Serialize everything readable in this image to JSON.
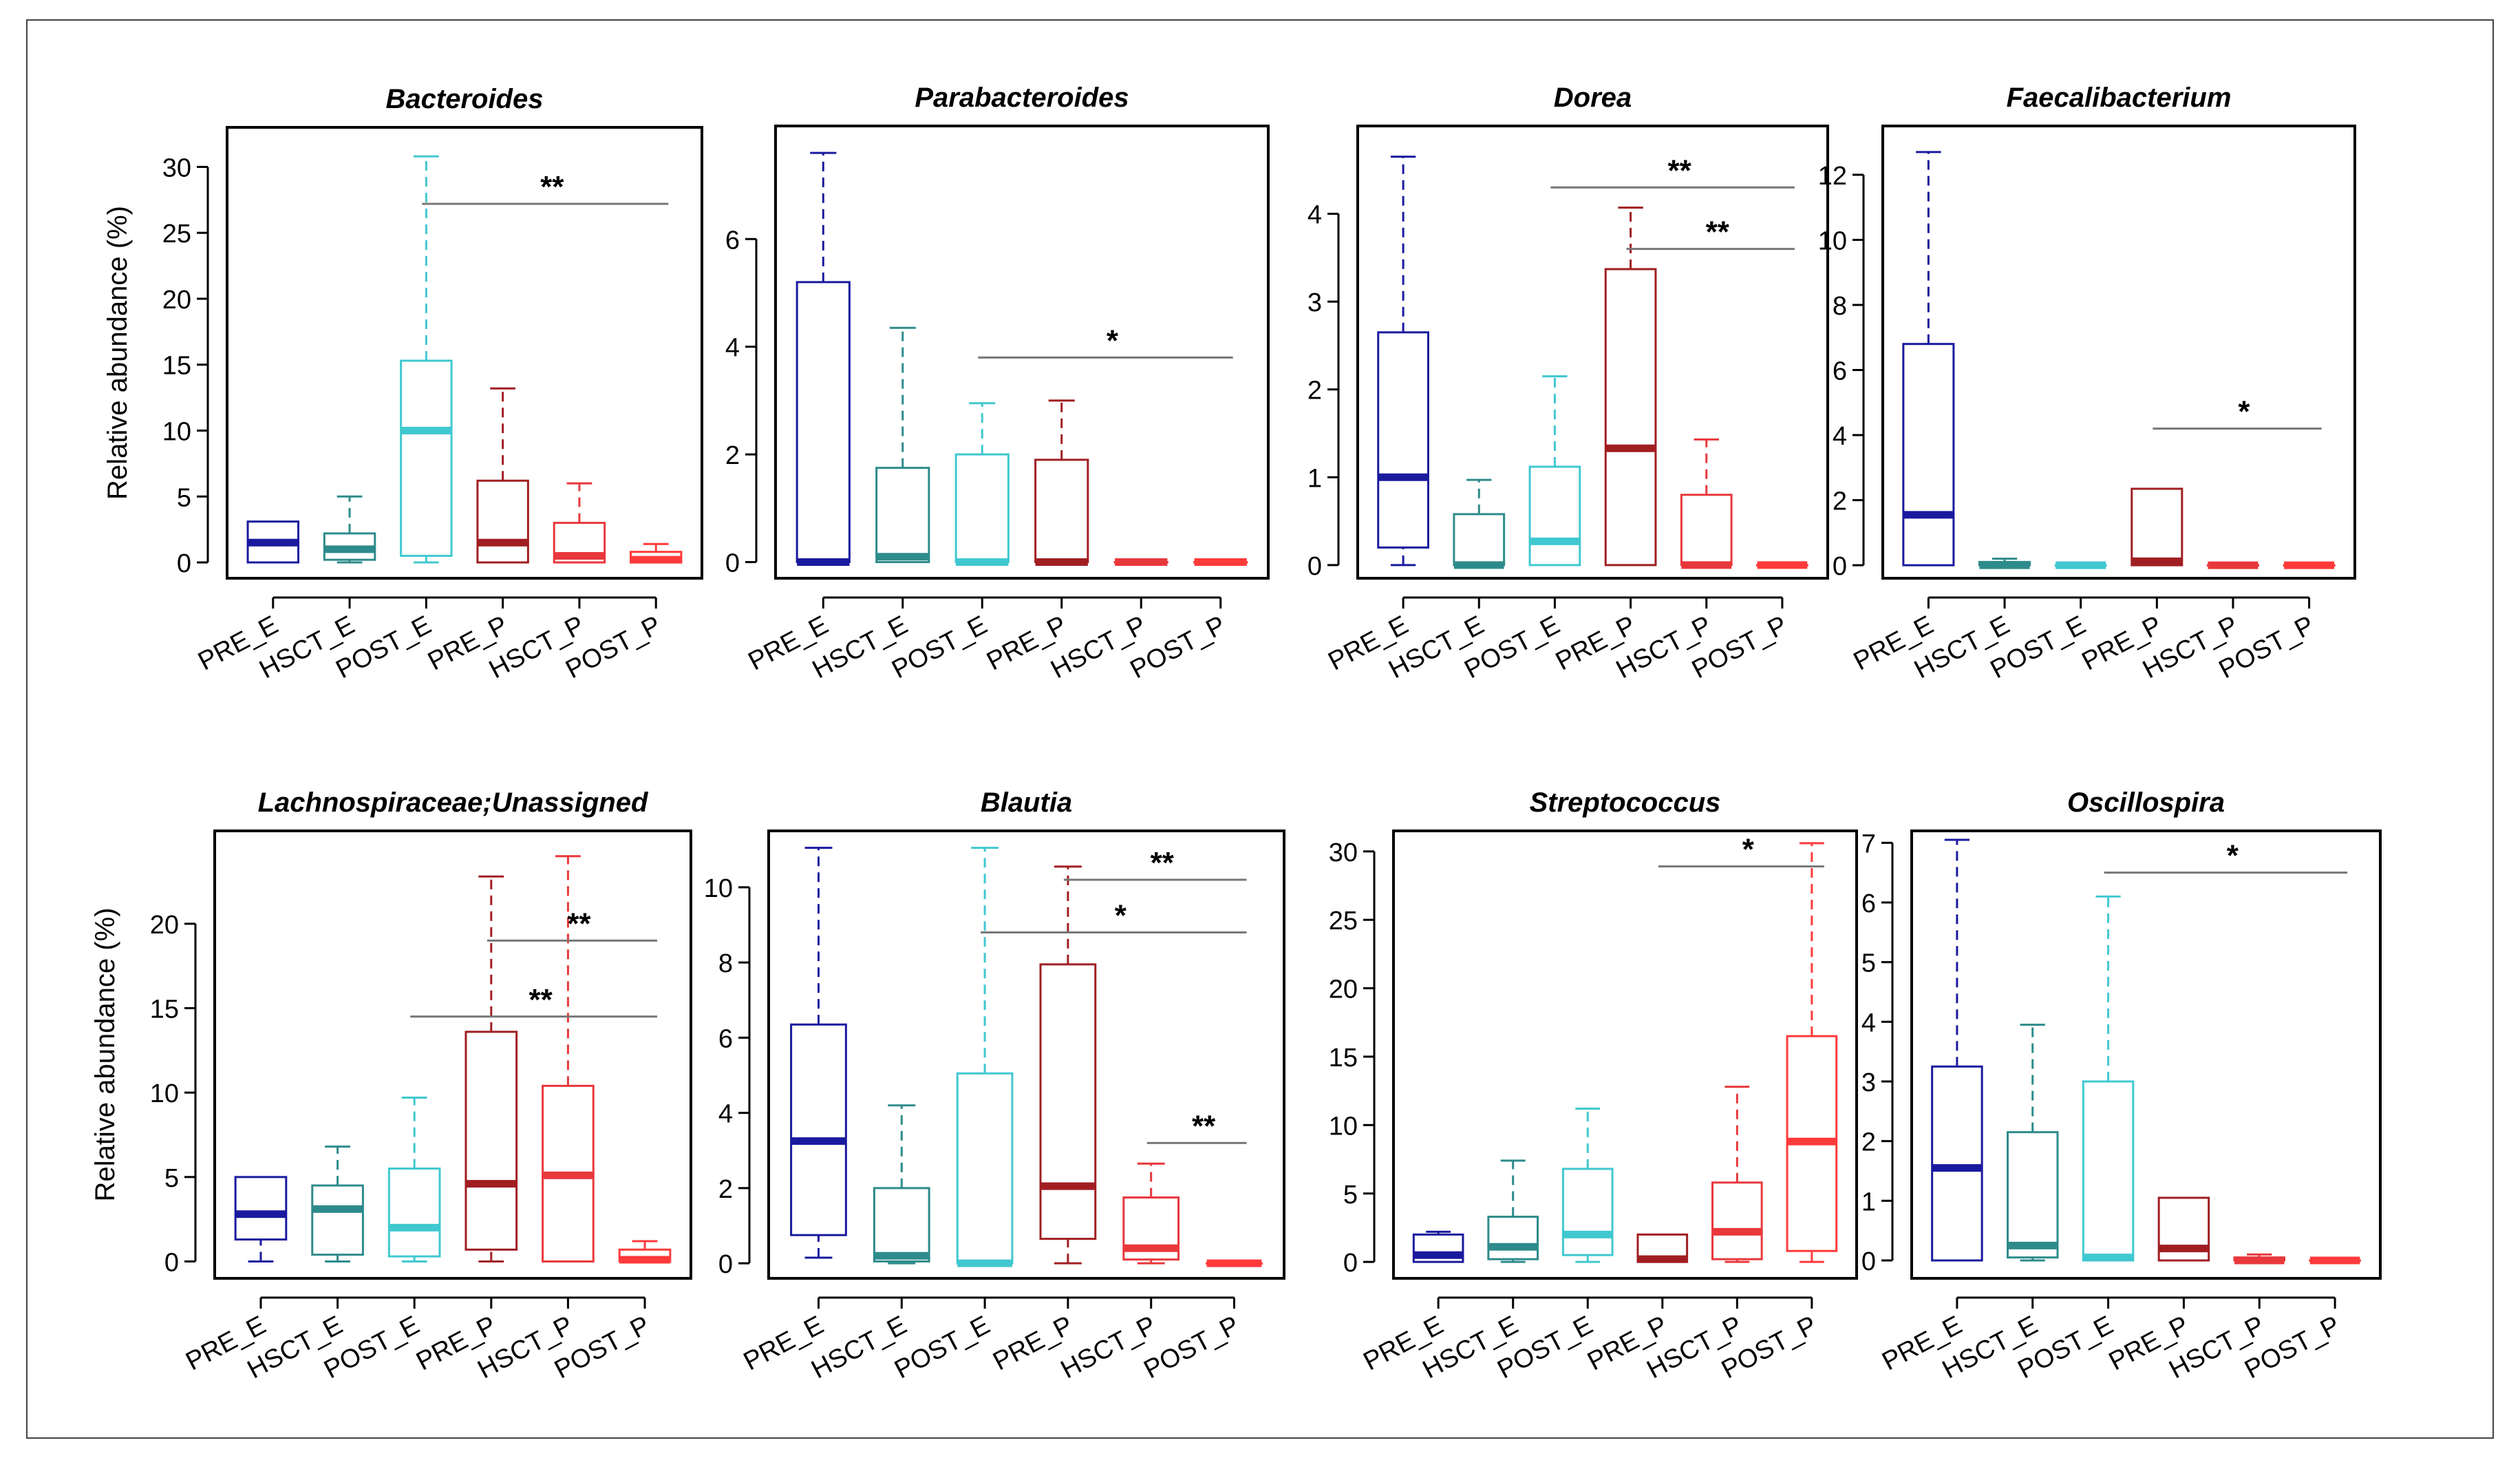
{
  "figure": {
    "ylabel": "Relative abundance (%)",
    "group_colors": {
      "PRE_E": "#1a1a9e",
      "HSCT_E": "#2e8b8b",
      "POST_E": "#40c8d0",
      "PRE_P": "#a01e22",
      "HSCT_P": "#e8383c",
      "POST_P": "#ff3a3a"
    }
  },
  "chart_data": [
    {
      "type": "box",
      "title": "Bacteroides",
      "ylabel": "Relative abundance (%)",
      "categories": [
        "PRE_E",
        "HSCT_E",
        "POST_E",
        "PRE_P",
        "HSCT_P",
        "POST_P"
      ],
      "ylim": [
        -1.2,
        33
      ],
      "yticks": [
        "0",
        "5",
        "10",
        "15",
        "20",
        "25",
        "30"
      ],
      "boxes": [
        {
          "group": "PRE_E",
          "min": 0,
          "q1": 0,
          "median": 1.5,
          "q3": 3.1,
          "max": 3.1
        },
        {
          "group": "HSCT_E",
          "min": 0,
          "q1": 0.2,
          "median": 1.0,
          "q3": 2.2,
          "max": 5.0
        },
        {
          "group": "POST_E",
          "min": 0,
          "q1": 0.5,
          "median": 10.0,
          "q3": 15.3,
          "max": 30.8
        },
        {
          "group": "PRE_P",
          "min": 0,
          "q1": 0,
          "median": 1.5,
          "q3": 6.2,
          "max": 13.2
        },
        {
          "group": "HSCT_P",
          "min": 0,
          "q1": 0,
          "median": 0.5,
          "q3": 3.0,
          "max": 6.0
        },
        {
          "group": "POST_P",
          "min": 0,
          "q1": 0,
          "median": 0.2,
          "q3": 0.8,
          "max": 1.4
        }
      ],
      "significance": [
        {
          "from": "POST_E",
          "to": "POST_P",
          "y": 27.2,
          "label": "**"
        }
      ]
    },
    {
      "type": "box",
      "title": "Parabacteroides",
      "ylabel": "",
      "categories": [
        "PRE_E",
        "HSCT_E",
        "POST_E",
        "PRE_P",
        "HSCT_P",
        "POST_P"
      ],
      "ylim": [
        -0.3,
        8.1
      ],
      "yticks": [
        "0",
        "2",
        "4",
        "6"
      ],
      "boxes": [
        {
          "group": "PRE_E",
          "min": 0,
          "q1": 0,
          "median": 0,
          "q3": 5.2,
          "max": 7.6
        },
        {
          "group": "HSCT_E",
          "min": 0,
          "q1": 0,
          "median": 0.1,
          "q3": 1.75,
          "max": 4.35
        },
        {
          "group": "POST_E",
          "min": 0,
          "q1": 0,
          "median": 0,
          "q3": 2.0,
          "max": 2.95
        },
        {
          "group": "PRE_P",
          "min": 0,
          "q1": 0,
          "median": 0,
          "q3": 1.9,
          "max": 3.0
        },
        {
          "group": "HSCT_P",
          "min": 0,
          "q1": 0,
          "median": 0,
          "q3": 0,
          "max": 0
        },
        {
          "group": "POST_P",
          "min": 0,
          "q1": 0,
          "median": 0,
          "q3": 0,
          "max": 0
        }
      ],
      "significance": [
        {
          "from": "POST_E",
          "to": "POST_P",
          "y": 3.8,
          "label": "*"
        }
      ]
    },
    {
      "type": "box",
      "title": "Dorea",
      "ylabel": "",
      "categories": [
        "PRE_E",
        "HSCT_E",
        "POST_E",
        "PRE_P",
        "HSCT_P",
        "POST_P"
      ],
      "ylim": [
        -0.15,
        5.0
      ],
      "yticks": [
        "0",
        "1",
        "2",
        "3",
        "4"
      ],
      "boxes": [
        {
          "group": "PRE_E",
          "min": 0,
          "q1": 0.2,
          "median": 1.0,
          "q3": 2.65,
          "max": 4.65
        },
        {
          "group": "HSCT_E",
          "min": 0,
          "q1": 0,
          "median": 0,
          "q3": 0.58,
          "max": 0.97
        },
        {
          "group": "POST_E",
          "min": 0,
          "q1": 0,
          "median": 0.27,
          "q3": 1.12,
          "max": 2.15
        },
        {
          "group": "PRE_P",
          "min": 0,
          "q1": 0,
          "median": 1.33,
          "q3": 3.37,
          "max": 4.07
        },
        {
          "group": "HSCT_P",
          "min": 0,
          "q1": 0,
          "median": 0,
          "q3": 0.8,
          "max": 1.43
        },
        {
          "group": "POST_P",
          "min": 0,
          "q1": 0,
          "median": 0,
          "q3": 0,
          "max": 0
        }
      ],
      "significance": [
        {
          "from": "POST_E",
          "to": "POST_P",
          "y": 4.3,
          "label": "**"
        },
        {
          "from": "PRE_P",
          "to": "POST_P",
          "y": 3.6,
          "label": "**"
        }
      ]
    },
    {
      "type": "box",
      "title": "Faecalibacterium",
      "ylabel": "",
      "categories": [
        "PRE_E",
        "HSCT_E",
        "POST_E",
        "PRE_P",
        "HSCT_P",
        "POST_P"
      ],
      "ylim": [
        -0.4,
        13.5
      ],
      "yticks": [
        "0",
        "2",
        "4",
        "6",
        "8",
        "10",
        "12"
      ],
      "boxes": [
        {
          "group": "PRE_E",
          "min": 0,
          "q1": 0,
          "median": 1.55,
          "q3": 6.8,
          "max": 12.7
        },
        {
          "group": "HSCT_E",
          "min": 0,
          "q1": 0,
          "median": 0,
          "q3": 0.1,
          "max": 0.2
        },
        {
          "group": "POST_E",
          "min": 0,
          "q1": 0,
          "median": 0,
          "q3": 0,
          "max": 0
        },
        {
          "group": "PRE_P",
          "min": 0,
          "q1": 0,
          "median": 0.12,
          "q3": 2.35,
          "max": 2.35
        },
        {
          "group": "HSCT_P",
          "min": 0,
          "q1": 0,
          "median": 0,
          "q3": 0,
          "max": 0
        },
        {
          "group": "POST_P",
          "min": 0,
          "q1": 0,
          "median": 0,
          "q3": 0,
          "max": 0
        }
      ],
      "significance": [
        {
          "from": "PRE_P",
          "to": "POST_P",
          "y": 4.2,
          "label": "*"
        }
      ]
    },
    {
      "type": "box",
      "title": "Lachnospiraceae;Unassigned",
      "ylabel": "Relative abundance (%)",
      "categories": [
        "PRE_E",
        "HSCT_E",
        "POST_E",
        "PRE_P",
        "HSCT_P",
        "POST_P"
      ],
      "ylim": [
        -1.0,
        25.5
      ],
      "yticks": [
        "0",
        "5",
        "10",
        "15",
        "20"
      ],
      "boxes": [
        {
          "group": "PRE_E",
          "min": 0,
          "q1": 1.3,
          "median": 2.8,
          "q3": 5.0,
          "max": 5.0
        },
        {
          "group": "HSCT_E",
          "min": 0,
          "q1": 0.4,
          "median": 3.1,
          "q3": 4.5,
          "max": 6.8
        },
        {
          "group": "POST_E",
          "min": 0,
          "q1": 0.3,
          "median": 2.0,
          "q3": 5.5,
          "max": 9.7
        },
        {
          "group": "PRE_P",
          "min": 0,
          "q1": 0.7,
          "median": 4.6,
          "q3": 13.6,
          "max": 22.8
        },
        {
          "group": "HSCT_P",
          "min": 0,
          "q1": 0,
          "median": 5.1,
          "q3": 10.4,
          "max": 24.0
        },
        {
          "group": "POST_P",
          "min": 0,
          "q1": 0,
          "median": 0.1,
          "q3": 0.7,
          "max": 1.2
        }
      ],
      "significance": [
        {
          "from": "PRE_P",
          "to": "POST_P",
          "y": 19.0,
          "label": "**"
        },
        {
          "from": "POST_E",
          "to": "POST_P",
          "y": 14.5,
          "label": "**"
        }
      ]
    },
    {
      "type": "box",
      "title": "Blautia",
      "ylabel": "",
      "categories": [
        "PRE_E",
        "HSCT_E",
        "POST_E",
        "PRE_P",
        "HSCT_P",
        "POST_P"
      ],
      "ylim": [
        -0.4,
        11.5
      ],
      "yticks": [
        "0",
        "2",
        "4",
        "6",
        "8",
        "10"
      ],
      "boxes": [
        {
          "group": "PRE_E",
          "min": 0.15,
          "q1": 0.75,
          "median": 3.25,
          "q3": 6.35,
          "max": 11.05
        },
        {
          "group": "HSCT_E",
          "min": 0,
          "q1": 0.05,
          "median": 0.2,
          "q3": 2.0,
          "max": 4.2
        },
        {
          "group": "POST_E",
          "min": 0,
          "q1": 0,
          "median": 0,
          "q3": 5.05,
          "max": 11.05
        },
        {
          "group": "PRE_P",
          "min": 0,
          "q1": 0.65,
          "median": 2.05,
          "q3": 7.95,
          "max": 10.55
        },
        {
          "group": "HSCT_P",
          "min": 0,
          "q1": 0.1,
          "median": 0.4,
          "q3": 1.75,
          "max": 2.65
        },
        {
          "group": "POST_P",
          "min": 0,
          "q1": 0,
          "median": 0,
          "q3": 0,
          "max": 0
        }
      ],
      "significance": [
        {
          "from": "PRE_P",
          "to": "POST_P",
          "y": 10.2,
          "label": "**"
        },
        {
          "from": "POST_E",
          "to": "POST_P",
          "y": 8.8,
          "label": "*"
        },
        {
          "from": "HSCT_P",
          "to": "POST_P",
          "y": 3.2,
          "label": "**"
        }
      ]
    },
    {
      "type": "box",
      "title": "Streptococcus",
      "ylabel": "",
      "categories": [
        "PRE_E",
        "HSCT_E",
        "POST_E",
        "PRE_P",
        "HSCT_P",
        "POST_P"
      ],
      "ylim": [
        -1.2,
        31.5
      ],
      "yticks": [
        "0",
        "5",
        "10",
        "15",
        "20",
        "25",
        "30"
      ],
      "boxes": [
        {
          "group": "PRE_E",
          "min": 0,
          "q1": 0,
          "median": 0.5,
          "q3": 2.0,
          "max": 2.2
        },
        {
          "group": "HSCT_E",
          "min": 0,
          "q1": 0.2,
          "median": 1.1,
          "q3": 3.3,
          "max": 7.4
        },
        {
          "group": "POST_E",
          "min": 0,
          "q1": 0.5,
          "median": 2.0,
          "q3": 6.8,
          "max": 11.2
        },
        {
          "group": "PRE_P",
          "min": 0,
          "q1": 0,
          "median": 0.2,
          "q3": 2.0,
          "max": 2.0
        },
        {
          "group": "HSCT_P",
          "min": 0,
          "q1": 0.2,
          "median": 2.2,
          "q3": 5.8,
          "max": 12.8
        },
        {
          "group": "POST_P",
          "min": 0,
          "q1": 0.8,
          "median": 8.8,
          "q3": 16.5,
          "max": 30.6
        }
      ],
      "significance": [
        {
          "from": "PRE_P",
          "to": "POST_P",
          "y": 28.9,
          "label": "*"
        }
      ]
    },
    {
      "type": "box",
      "title": "Oscillospira",
      "ylabel": "",
      "categories": [
        "PRE_E",
        "HSCT_E",
        "POST_E",
        "PRE_P",
        "HSCT_P",
        "POST_P"
      ],
      "ylim": [
        -0.3,
        7.2
      ],
      "yticks": [
        "0",
        "1",
        "2",
        "3",
        "4",
        "5",
        "6",
        "7"
      ],
      "boxes": [
        {
          "group": "PRE_E",
          "min": 0,
          "q1": 0,
          "median": 1.55,
          "q3": 3.25,
          "max": 7.05
        },
        {
          "group": "HSCT_E",
          "min": 0,
          "q1": 0.05,
          "median": 0.25,
          "q3": 2.15,
          "max": 3.95
        },
        {
          "group": "POST_E",
          "min": 0,
          "q1": 0,
          "median": 0.05,
          "q3": 3.0,
          "max": 6.1
        },
        {
          "group": "PRE_P",
          "min": 0,
          "q1": 0,
          "median": 0.2,
          "q3": 1.05,
          "max": 1.05
        },
        {
          "group": "HSCT_P",
          "min": 0,
          "q1": 0,
          "median": 0,
          "q3": 0.05,
          "max": 0.1
        },
        {
          "group": "POST_P",
          "min": 0,
          "q1": 0,
          "median": 0,
          "q3": 0,
          "max": 0
        }
      ],
      "significance": [
        {
          "from": "POST_E",
          "to": "POST_P",
          "y": 6.5,
          "label": "*"
        }
      ]
    }
  ]
}
